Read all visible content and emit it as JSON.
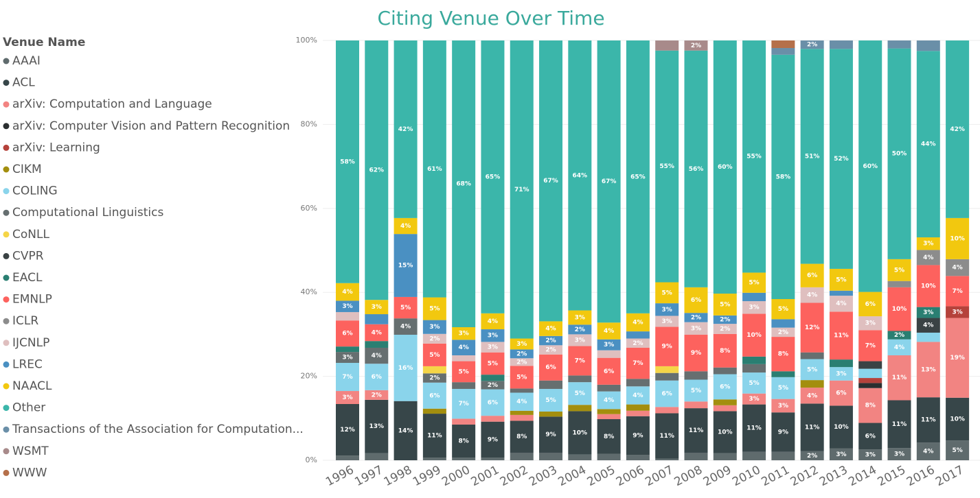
{
  "chart_data": {
    "type": "stacked_bar_100",
    "title": "Citing Venue Over Time",
    "legend_title": "Venue Name",
    "categories": [
      "1996",
      "1997",
      "1998",
      "1999",
      "2000",
      "2001",
      "2002",
      "2003",
      "2004",
      "2005",
      "2006",
      "2007",
      "2008",
      "2009",
      "2010",
      "2011",
      "2012",
      "2013",
      "2014",
      "2015",
      "2016",
      "2017"
    ],
    "ylim": [
      0,
      100
    ],
    "yticks": [
      {
        "value": 0,
        "label": "0%"
      },
      {
        "value": 20,
        "label": "20%"
      },
      {
        "value": 40,
        "label": "40%"
      },
      {
        "value": 60,
        "label": "60%"
      },
      {
        "value": 80,
        "label": "80%"
      },
      {
        "value": 100,
        "label": "100%"
      }
    ],
    "grid": true,
    "series": [
      {
        "name": "AAAI",
        "color": "#5f6b6d",
        "values": [
          1.1,
          1.7,
          0,
          0.6,
          0.6,
          0.6,
          1.8,
          1.8,
          1.4,
          1.5,
          1.3,
          0.4,
          1.8,
          1.7,
          2,
          2,
          2.2,
          2.8,
          2.6,
          2.9,
          4.2,
          4.7
        ],
        "value_labels": [
          null,
          null,
          null,
          null,
          null,
          null,
          null,
          null,
          null,
          null,
          null,
          null,
          null,
          null,
          null,
          null,
          "2%",
          "3%",
          "3%",
          "3%",
          "4%",
          "5%"
        ]
      },
      {
        "name": "ACL",
        "color": "#374649",
        "values": [
          12.3,
          12.7,
          14.1,
          10.5,
          7.9,
          8.6,
          7.6,
          8.6,
          10.3,
          8.3,
          9.2,
          10.8,
          10.6,
          10,
          11.3,
          9.4,
          11.3,
          10.2,
          6.3,
          11.4,
          10.8,
          10.2
        ],
        "value_labels": [
          "12%",
          "13%",
          "14%",
          "11%",
          "8%",
          "9%",
          "8%",
          "9%",
          "10%",
          "8%",
          "9%",
          "11%",
          "11%",
          "10%",
          "11%",
          "9%",
          "11%",
          "10%",
          "6%",
          "11%",
          "11%",
          "10%"
        ]
      },
      {
        "name": "arXiv: Computation and Language",
        "color": "#f28482",
        "values": [
          3.1,
          2.3,
          0,
          0,
          1.4,
          1.4,
          1.4,
          0,
          0,
          1.2,
          1.3,
          1.5,
          1.6,
          1.4,
          2.6,
          3.2,
          3.8,
          6,
          8.3,
          10.7,
          13.2,
          19
        ],
        "value_labels": [
          "3%",
          "2%",
          null,
          null,
          null,
          null,
          null,
          null,
          null,
          null,
          null,
          null,
          null,
          null,
          "3%",
          "3%",
          "4%",
          "6%",
          "8%",
          "11%",
          "13%",
          "19%"
        ]
      },
      {
        "name": "arXiv: Computer Vision and Pattern Recognition",
        "color": "#2b2f30",
        "values": [
          0,
          0,
          0,
          0,
          0,
          0,
          0,
          0,
          0,
          0,
          0,
          0,
          0,
          0,
          0,
          0,
          0,
          0,
          1.2,
          0,
          0,
          0
        ]
      },
      {
        "name": "arXiv: Learning",
        "color": "#b5423b",
        "values": [
          0,
          0,
          0,
          0,
          0,
          0,
          0,
          0,
          0,
          0,
          0,
          0,
          0,
          0,
          0,
          0,
          0,
          0,
          1.2,
          0,
          0,
          2.8
        ],
        "value_labels": [
          null,
          null,
          null,
          null,
          null,
          null,
          null,
          null,
          null,
          null,
          null,
          null,
          null,
          null,
          null,
          null,
          null,
          null,
          null,
          null,
          null,
          "3%"
        ]
      },
      {
        "name": "CIKM",
        "color": "#a38e0e",
        "values": [
          0,
          0,
          0,
          1.2,
          0,
          0,
          1,
          1.2,
          1.5,
          1.2,
          1.5,
          0,
          0,
          1.4,
          0,
          0,
          1.8,
          0,
          0,
          0,
          0,
          0
        ]
      },
      {
        "name": "COLING",
        "color": "#8ad4eb",
        "values": [
          6.7,
          6.3,
          15.8,
          6.2,
          7.1,
          6.3,
          4.3,
          5.4,
          5.4,
          4.2,
          4.3,
          6.3,
          5.2,
          6,
          5,
          5.2,
          5,
          3.2,
          2.2,
          3.8,
          2.2,
          0
        ],
        "value_labels": [
          "7%",
          "6%",
          "16%",
          "6%",
          "7%",
          "6%",
          "4%",
          "5%",
          "5%",
          "4%",
          "4%",
          "6%",
          "5%",
          "6%",
          "5%",
          "5%",
          "5%",
          "3%",
          null,
          "4%",
          null,
          null
        ]
      },
      {
        "name": "Computational Linguistics",
        "color": "#666f70",
        "values": [
          2.6,
          3.8,
          3.9,
          2.2,
          1.6,
          2,
          1,
          2,
          1.6,
          1.6,
          1.8,
          1.8,
          2,
          1.6,
          2,
          0,
          1.6,
          0,
          0,
          0,
          0,
          0
        ],
        "value_labels": [
          "3%",
          "4%",
          "4%",
          "2%",
          null,
          "2%",
          null,
          null,
          null,
          null,
          null,
          null,
          null,
          null,
          null,
          null,
          null,
          null,
          null,
          null,
          null,
          null
        ]
      },
      {
        "name": "CoNLL",
        "color": "#f5d547",
        "values": [
          0,
          0,
          0,
          1.7,
          0,
          0,
          0,
          0,
          0,
          0,
          0,
          1.6,
          0,
          0,
          0,
          0,
          0,
          0,
          0,
          0,
          0,
          0
        ]
      },
      {
        "name": "CVPR",
        "color": "#3a4244",
        "values": [
          0,
          0,
          0,
          0,
          0,
          0,
          0,
          0,
          0,
          0,
          0,
          0,
          0,
          0,
          0,
          0,
          0,
          0,
          1.8,
          0,
          3.5,
          0
        ],
        "value_labels": [
          null,
          null,
          null,
          null,
          null,
          null,
          null,
          null,
          null,
          null,
          null,
          null,
          null,
          null,
          null,
          null,
          null,
          null,
          null,
          null,
          "4%",
          null
        ]
      },
      {
        "name": "EACL",
        "color": "#2a7f72",
        "values": [
          1.3,
          1.6,
          0,
          0,
          0,
          1.5,
          0,
          0,
          0,
          0,
          0,
          0,
          0,
          0,
          1.8,
          1.4,
          0,
          1.8,
          0,
          2,
          2.6,
          0
        ],
        "value_labels": [
          null,
          null,
          null,
          null,
          null,
          null,
          null,
          null,
          null,
          null,
          null,
          null,
          null,
          null,
          null,
          null,
          null,
          null,
          null,
          "2%",
          "3%",
          null
        ]
      },
      {
        "name": "EMNLP",
        "color": "#fd625e",
        "values": [
          6.2,
          4,
          5.1,
          5.4,
          5,
          5.3,
          5.4,
          6.2,
          7,
          6.4,
          7.4,
          9.4,
          8.7,
          8,
          10.2,
          8.2,
          11.8,
          11.4,
          7.4,
          10.4,
          10,
          7.2
        ],
        "value_labels": [
          "6%",
          "4%",
          "5%",
          "5%",
          "5%",
          "5%",
          "5%",
          "6%",
          "7%",
          "6%",
          "7%",
          "9%",
          "9%",
          "8%",
          "10%",
          "8%",
          "12%",
          "11%",
          "7%",
          "10%",
          "10%",
          "7%"
        ]
      },
      {
        "name": "ICLR",
        "color": "#8c8c8c",
        "values": [
          0,
          0,
          0,
          0,
          0,
          0,
          0,
          0,
          0,
          0,
          0,
          0,
          0,
          0,
          0,
          0,
          0,
          0,
          0,
          1.5,
          3.6,
          4
        ],
        "value_labels": [
          null,
          null,
          null,
          null,
          null,
          null,
          null,
          null,
          null,
          null,
          null,
          null,
          null,
          null,
          null,
          null,
          null,
          null,
          null,
          null,
          "4%",
          "4%"
        ]
      },
      {
        "name": "IJCNLP",
        "color": "#dfbfbf",
        "values": [
          2,
          0,
          0,
          2.3,
          1.4,
          2.5,
          1.8,
          2.2,
          2.8,
          1.8,
          2.2,
          2.6,
          3,
          2.4,
          3,
          2.2,
          3.7,
          3.8,
          3.3,
          0,
          0,
          0
        ],
        "value_labels": [
          null,
          null,
          null,
          "2%",
          null,
          "3%",
          "2%",
          "2%",
          "3%",
          null,
          "2%",
          "3%",
          "3%",
          "2%",
          "3%",
          "2%",
          "4%",
          "4%",
          "3%",
          null,
          null,
          null
        ]
      },
      {
        "name": "LREC",
        "color": "#4a90c2",
        "values": [
          2.7,
          2.4,
          15,
          3.3,
          3.7,
          3,
          2.1,
          2.2,
          2.3,
          2.6,
          1.7,
          3,
          2.2,
          2,
          2,
          2,
          0,
          1.2,
          0,
          0,
          0,
          0
        ],
        "value_labels": [
          "3%",
          null,
          "15%",
          "3%",
          "4%",
          "3%",
          "2%",
          "2%",
          "2%",
          "3%",
          null,
          "3%",
          "2%",
          "2%",
          null,
          null,
          null,
          null,
          null,
          null,
          null,
          null
        ]
      },
      {
        "name": "NAACL",
        "color": "#f2c80f",
        "values": [
          4.2,
          3.4,
          3.8,
          5.4,
          3,
          3.8,
          2.6,
          3.5,
          3.4,
          4,
          4.3,
          5,
          6.1,
          5.2,
          4.8,
          4.8,
          5.6,
          5.2,
          5.8,
          5.2,
          3,
          9.8
        ],
        "value_labels": [
          "4%",
          "3%",
          "4%",
          "5%",
          "3%",
          "4%",
          "3%",
          "4%",
          "3%",
          "4%",
          "4%",
          "5%",
          "6%",
          "5%",
          "5%",
          "5%",
          "6%",
          "5%",
          "6%",
          "5%",
          "3%",
          "10%"
        ]
      },
      {
        "name": "Other",
        "color": "#3bb6aa",
        "values": [
          57.8,
          61.8,
          42.3,
          61.2,
          68.3,
          65,
          71,
          66.9,
          64.3,
          67.2,
          65,
          55.2,
          56.4,
          60.3,
          55.3,
          58.2,
          51.2,
          52.4,
          59.9,
          50.2,
          44.4,
          42.3
        ],
        "value_labels": [
          "58%",
          "62%",
          "42%",
          "61%",
          "68%",
          "65%",
          "71%",
          "67%",
          "64%",
          "67%",
          "65%",
          "55%",
          "56%",
          "60%",
          "55%",
          "58%",
          "51%",
          "52%",
          "60%",
          "50%",
          "44%",
          "42%"
        ]
      },
      {
        "name": "Transactions of the Association for Computation...",
        "color": "#6a8fa8",
        "values": [
          0,
          0,
          0,
          0,
          0,
          0,
          0,
          0,
          0,
          0,
          0,
          0,
          0,
          0,
          0,
          1.6,
          2,
          2,
          0,
          1.9,
          2.5,
          0
        ],
        "value_labels": [
          null,
          null,
          null,
          null,
          null,
          null,
          null,
          null,
          null,
          null,
          null,
          null,
          null,
          null,
          null,
          null,
          "2%",
          null,
          null,
          null,
          null,
          null
        ]
      },
      {
        "name": "WSMT",
        "color": "#a88a8a",
        "values": [
          0,
          0,
          0,
          0,
          0,
          0,
          0,
          0,
          0,
          0,
          0,
          2.4,
          2.4,
          0,
          0,
          0,
          0,
          0,
          0,
          0,
          0,
          0
        ],
        "value_labels": [
          null,
          null,
          null,
          null,
          null,
          null,
          null,
          null,
          null,
          null,
          null,
          null,
          "2%",
          null,
          null,
          null,
          null,
          null,
          null,
          null,
          null,
          null
        ]
      },
      {
        "name": "WWW",
        "color": "#b5704a",
        "values": [
          0,
          0,
          0,
          0,
          0,
          0,
          0,
          0,
          0,
          0,
          0,
          0,
          0,
          0,
          0,
          1.8,
          0,
          0,
          0,
          0,
          0,
          0
        ]
      }
    ]
  }
}
